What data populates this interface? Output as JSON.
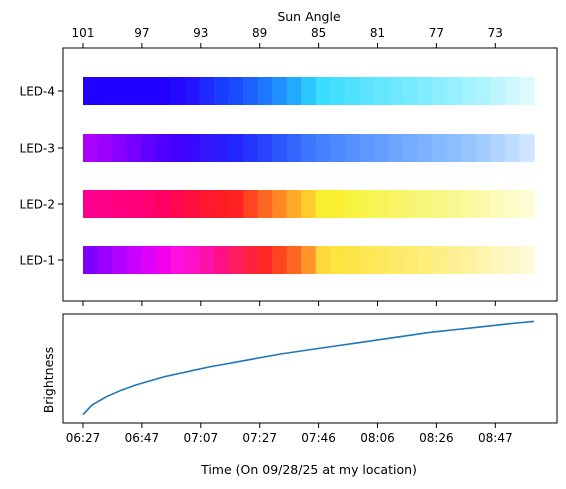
{
  "chart_data": [
    {
      "type": "heatmap",
      "title": "",
      "top_axis": {
        "label": "Sun Angle",
        "ticks": [
          "101",
          "97",
          "93",
          "89",
          "85",
          "81",
          "77",
          "73"
        ]
      },
      "rows": [
        "LED-1",
        "LED-2",
        "LED-3",
        "LED-4"
      ],
      "grid": false,
      "segment_count": 31,
      "colors": {
        "LED-4": [
          "#2200ff",
          "#2200ff",
          "#2200ff",
          "#2200ff",
          "#2200ff",
          "#2200ff",
          "#2208ff",
          "#2412ff",
          "#1e2aff",
          "#1a3cff",
          "#1a4cff",
          "#1c60ff",
          "#1e78ff",
          "#2090ff",
          "#22aaff",
          "#2ac6ff",
          "#3addff",
          "#44e0ff",
          "#4ee2ff",
          "#5ae4ff",
          "#64e6ff",
          "#6ee8ff",
          "#78eaff",
          "#82ecff",
          "#8ceeff",
          "#96f0ff",
          "#a2f2ff",
          "#aef4ff",
          "#bef6ff",
          "#cef8ff",
          "#dafaff"
        ],
        "LED-3": [
          "#aa00ff",
          "#9a00ff",
          "#8800ff",
          "#7600ff",
          "#6200ff",
          "#5000ff",
          "#4200ff",
          "#3a08ff",
          "#3214ff",
          "#2a1cff",
          "#2426ff",
          "#2434ff",
          "#2844ff",
          "#2c56ff",
          "#3266ff",
          "#3c78ff",
          "#4480ff",
          "#4c88ff",
          "#5490ff",
          "#5c98ff",
          "#649fff",
          "#6ca6ff",
          "#74acff",
          "#7cb2ff",
          "#84b8ff",
          "#8cbeff",
          "#96c4ff",
          "#a2ccff",
          "#aed4ff",
          "#bedcff",
          "#cee6ff"
        ],
        "LED-2": [
          "#ff008e",
          "#ff0088",
          "#ff0080",
          "#ff0078",
          "#ff0070",
          "#ff0060",
          "#ff0850",
          "#ff1040",
          "#ff1830",
          "#ff1c24",
          "#ff2222",
          "#ff4422",
          "#ff6622",
          "#ff8824",
          "#ffaa28",
          "#ffcc2e",
          "#f8f02c",
          "#f8f030",
          "#f8f240",
          "#f8f44e",
          "#f8f45a",
          "#f8f666",
          "#f8f670",
          "#f8f67a",
          "#f8f886",
          "#f8f892",
          "#fafa9e",
          "#fafaaa",
          "#fcfcb8",
          "#fcfcc6",
          "#fefed4"
        ],
        "LED-1": [
          "#8000ff",
          "#9a00ff",
          "#b000ff",
          "#c800ff",
          "#de00f8",
          "#f000ec",
          "#ff10e0",
          "#ff10c8",
          "#ff10a8",
          "#ff1088",
          "#ff1c60",
          "#ff2240",
          "#ff2a28",
          "#ff4422",
          "#ff6622",
          "#ff9428",
          "#ffd83c",
          "#fee440",
          "#fee648",
          "#fee852",
          "#fee85c",
          "#feea66",
          "#feec70",
          "#feee7a",
          "#feee86",
          "#fef092",
          "#fef29e",
          "#fef4ac",
          "#fef6ba",
          "#fef8c8",
          "#fefad6"
        ]
      }
    },
    {
      "type": "line",
      "xlabel": "Time (On 09/28/25 at my location)",
      "ylabel": "Brightness",
      "x_ticks": [
        "06:27",
        "06:47",
        "07:07",
        "07:27",
        "07:46",
        "08:06",
        "08:26",
        "08:47"
      ],
      "y_ticks": [],
      "x_range_minutes": [
        387,
        541
      ],
      "y_range": [
        0,
        1
      ],
      "series": [
        {
          "color": "#1f77b4",
          "x_minutes": [
            387,
            390,
            395,
            400,
            405,
            410,
            415,
            420,
            425,
            430,
            435,
            440,
            445,
            450,
            455,
            460,
            465,
            470,
            475,
            480,
            485,
            490,
            495,
            500,
            505,
            510,
            515,
            520,
            525,
            530,
            535,
            541
          ],
          "values": [
            0.05,
            0.14,
            0.22,
            0.28,
            0.33,
            0.37,
            0.41,
            0.44,
            0.47,
            0.5,
            0.525,
            0.55,
            0.575,
            0.6,
            0.625,
            0.645,
            0.665,
            0.685,
            0.705,
            0.725,
            0.745,
            0.765,
            0.785,
            0.805,
            0.825,
            0.84,
            0.855,
            0.87,
            0.885,
            0.9,
            0.915,
            0.93
          ]
        }
      ]
    }
  ]
}
